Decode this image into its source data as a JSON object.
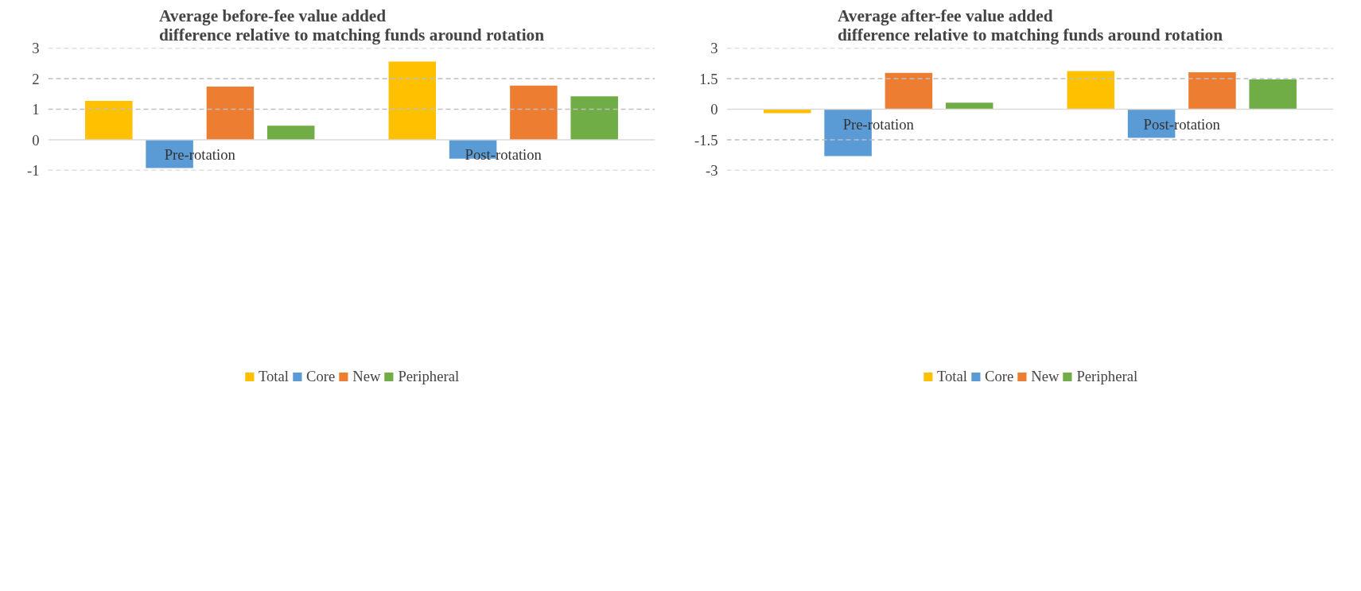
{
  "chart_data": [
    {
      "type": "bar",
      "title": "Average before-fee value added\ndifference relative to matching funds around rotation",
      "categories": [
        "Pre-rotation",
        "Post-rotation"
      ],
      "series": [
        {
          "name": "Total",
          "color": "#ffc000",
          "values": [
            1.27,
            2.56
          ]
        },
        {
          "name": "Core",
          "color": "#5b9bd5",
          "values": [
            -0.92,
            -0.62
          ]
        },
        {
          "name": "New",
          "color": "#ed7d31",
          "values": [
            1.74,
            1.77
          ]
        },
        {
          "name": "Peripheral",
          "color": "#70ad47",
          "values": [
            0.46,
            1.42
          ]
        }
      ],
      "ylim": [
        -1,
        3
      ],
      "yticks": [
        -1,
        0,
        1,
        2,
        3
      ],
      "grid": "y",
      "legend": "bottom"
    },
    {
      "type": "bar",
      "title": "Average after-fee value added\ndifference relative to matching funds around rotation",
      "categories": [
        "Pre-rotation",
        "Post-rotation"
      ],
      "series": [
        {
          "name": "Total",
          "color": "#ffc000",
          "values": [
            -0.19,
            1.87
          ]
        },
        {
          "name": "Core",
          "color": "#5b9bd5",
          "values": [
            -2.3,
            -1.4
          ]
        },
        {
          "name": "New",
          "color": "#ed7d31",
          "values": [
            1.78,
            1.81
          ]
        },
        {
          "name": "Peripheral",
          "color": "#70ad47",
          "values": [
            0.32,
            1.46
          ]
        }
      ],
      "ylim": [
        -3,
        3
      ],
      "yticks": [
        -3,
        -1.5,
        0,
        1.5,
        3
      ],
      "grid": "y",
      "legend": "bottom"
    }
  ]
}
